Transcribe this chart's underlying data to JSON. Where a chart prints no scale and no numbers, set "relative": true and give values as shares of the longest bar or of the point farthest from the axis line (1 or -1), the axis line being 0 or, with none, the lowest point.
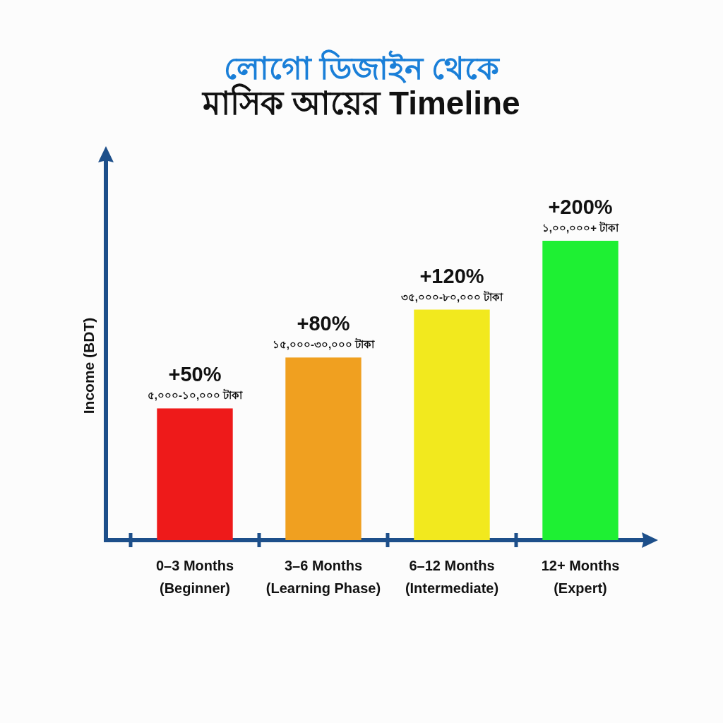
{
  "chart_data": {
    "type": "bar",
    "title": "লোগো ডিজাইন থেকে",
    "subtitle": "মাসিক আয়ের Timeline",
    "ylabel": "Income (BDT)",
    "categories": [
      "0–3 Months\n(Beginner)",
      "3–6 Months\n(Learning Phase)",
      "6–12 Months\n(Intermediate)",
      "12+ Months\n(Expert)"
    ],
    "values": [
      0.44,
      0.61,
      0.77,
      1
    ],
    "colors": [
      "#ee1a1a",
      "#f0a020",
      "#f2e91e",
      "#1ef033"
    ],
    "relative": true,
    "annotations": [
      {
        "text": "+50%\n৫,০০০-১০,০০০ টাকা",
        "x": "0–3 Months\n(Beginner)",
        "y": 0.44
      },
      {
        "text": "+80%\n১৫,০০০-৩০,০০০ টাকা",
        "x": "3–6 Months\n(Learning Phase)",
        "y": 0.61
      },
      {
        "text": "+120%\n৩৫,০০০-৮০,০০০ টাকা",
        "x": "6–12 Months\n(Intermediate)",
        "y": 0.77
      },
      {
        "text": "+200%\n১,০০,০০০+ টাকা",
        "x": "12+ Months\n(Expert)",
        "y": 1
      }
    ]
  }
}
